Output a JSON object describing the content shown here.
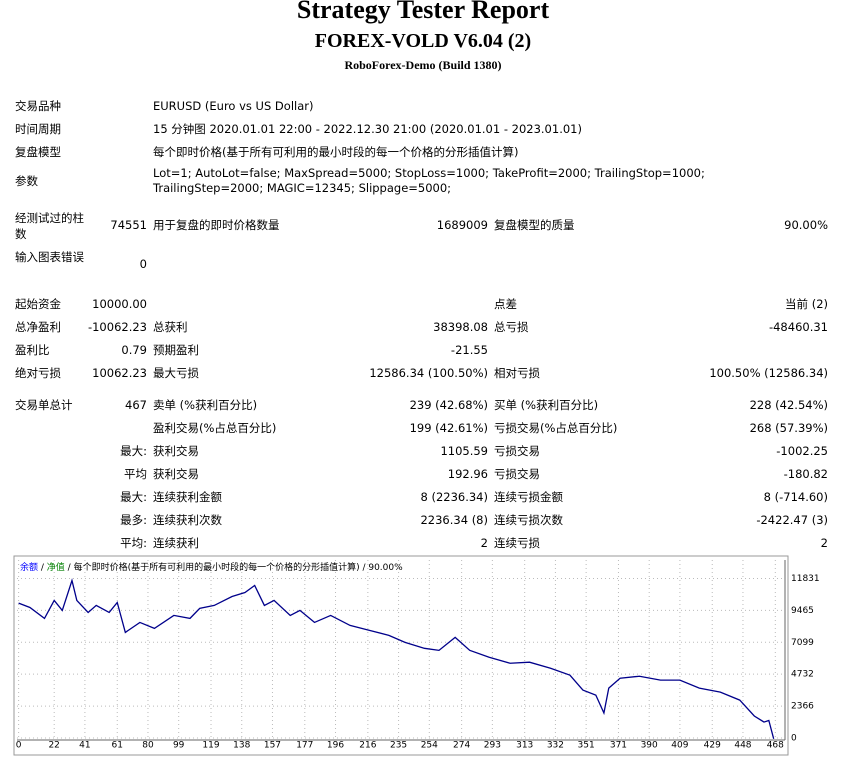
{
  "header": {
    "title": "Strategy Tester Report",
    "subtitle": "FOREX-VOLD V6.04 (2)",
    "server": "RoboForex-Demo (Build 1380)"
  },
  "info": [
    {
      "label": "交易品种",
      "value": "EURUSD (Euro vs US Dollar)"
    },
    {
      "label": "时间周期",
      "value": "15 分钟图 2020.01.01 22:00 - 2022.12.30 21:00 (2020.01.01 - 2023.01.01)"
    },
    {
      "label": "复盘模型",
      "value": "每个即时价格(基于所有可利用的最小时段的每一个价格的分形插值计算)"
    },
    {
      "label": "参数",
      "value": "Lot=1; AutoLot=false; MaxSpread=5000; StopLoss=1000; TakeProfit=2000; TrailingStop=1000; TrailingStep=2000; MAGIC=12345; Slippage=5000;"
    }
  ],
  "stats": [
    [
      "经测试过的柱数",
      "74551",
      "用于复盘的即时价格数量",
      "1689009",
      "复盘模型的质量",
      "90.00%"
    ],
    [
      "输入图表错误",
      "0",
      null,
      null,
      null,
      null
    ],
    [
      "起始资金",
      "10000.00",
      null,
      null,
      "点差",
      "当前 (2)"
    ],
    [
      "总净盈利",
      "-10062.23",
      "总获利",
      "38398.08",
      "总亏损",
      "-48460.31"
    ],
    [
      "盈利比",
      "0.79",
      "预期盈利",
      "-21.55",
      null,
      null
    ],
    [
      "绝对亏损",
      "10062.23",
      "最大亏损",
      "12586.34 (100.50%)",
      "相对亏损",
      "100.50% (12586.34)"
    ],
    [
      "交易单总计",
      "467",
      "卖单 (%获利百分比)",
      "239 (42.68%)",
      "买单 (%获利百分比)",
      "228 (42.54%)"
    ],
    [
      null,
      null,
      "盈利交易(%占总百分比)",
      "199 (42.61%)",
      "亏损交易(%占总百分比)",
      "268 (57.39%)"
    ],
    [
      null,
      "最大:",
      "获利交易",
      "1105.59",
      "亏损交易",
      "-1002.25"
    ],
    [
      null,
      "平均",
      "获利交易",
      "192.96",
      "亏损交易",
      "-180.82"
    ],
    [
      null,
      "最大:",
      "连续获利金额",
      "8 (2236.34)",
      "连续亏损金额",
      "8 (-714.60)"
    ],
    [
      null,
      "最多:",
      "连续获利次数",
      "2236.34 (8)",
      "连续亏损次数",
      "-2422.47 (3)"
    ],
    [
      null,
      "平均:",
      "连续获利",
      "2",
      "连续亏损",
      "2"
    ]
  ],
  "chart_data": {
    "type": "line",
    "legend": [
      {
        "text": "余额",
        "color": "#0000ff"
      },
      {
        "text": "净值",
        "color": "#008000"
      },
      {
        "text": "每个即时价格(基于所有可利用的最小时段的每一个价格的分形插值计算)",
        "color": "#000000"
      },
      {
        "text": "90.00%",
        "color": "#000000"
      }
    ],
    "x": [
      0,
      7,
      16,
      22,
      27,
      33,
      36,
      43,
      48,
      56,
      61,
      66,
      75,
      84,
      96,
      106,
      112,
      121,
      132,
      140,
      146,
      152,
      158,
      168,
      174,
      183,
      193,
      205,
      217,
      229,
      239,
      251,
      260,
      270,
      279,
      291,
      304,
      316,
      329,
      341,
      349,
      357,
      362,
      365,
      372,
      384,
      397,
      409,
      421,
      434,
      446,
      455,
      461,
      464,
      467
    ],
    "series": [
      {
        "name": "余额",
        "color": "#00008b",
        "values": [
          10000,
          9680,
          8870,
          10200,
          9460,
          11680,
          10200,
          9310,
          9830,
          9310,
          10050,
          7830,
          8570,
          8130,
          9090,
          8870,
          9610,
          9830,
          10490,
          10790,
          11310,
          9830,
          10200,
          9090,
          9460,
          8570,
          9090,
          8350,
          7980,
          7610,
          7090,
          6650,
          6500,
          7460,
          6500,
          5990,
          5540,
          5620,
          5170,
          4660,
          3550,
          3180,
          1850,
          3700,
          4430,
          4580,
          4290,
          4290,
          3700,
          3400,
          2810,
          1630,
          1180,
          1300,
          -62.23
        ]
      }
    ],
    "xlim": [
      -1,
      474
    ],
    "ylim": [
      -150,
      13200
    ],
    "xticks": [
      0,
      22,
      41,
      61,
      80,
      99,
      119,
      138,
      157,
      177,
      196,
      216,
      235,
      254,
      274,
      293,
      313,
      332,
      351,
      371,
      390,
      409,
      429,
      448,
      468
    ],
    "yticks": [
      0,
      2366,
      4732,
      7099,
      9465,
      11831
    ],
    "grid": true
  }
}
